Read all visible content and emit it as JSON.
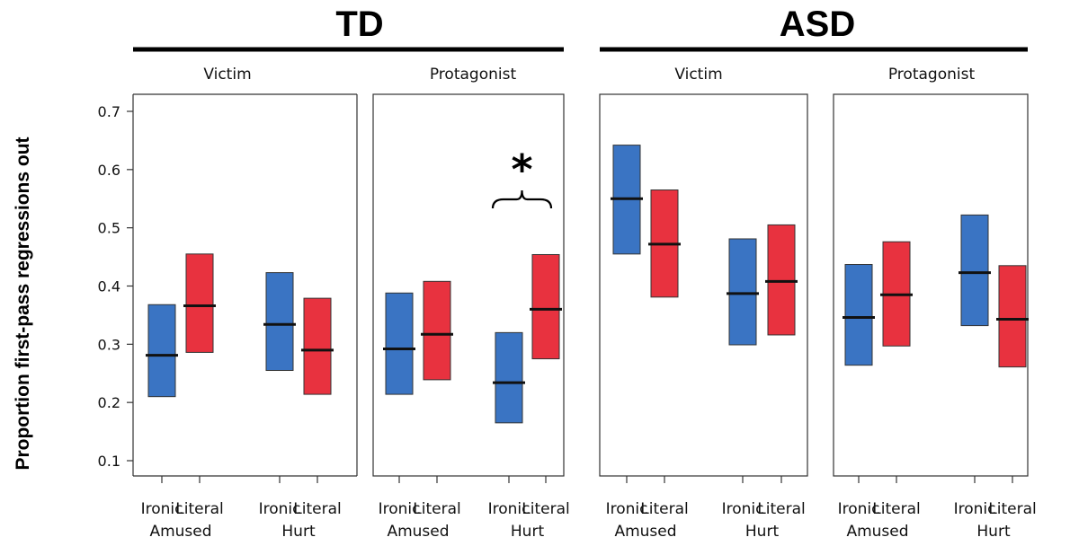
{
  "chart_data": {
    "type": "box",
    "ylabel": "Proportion first-pass regressions out",
    "y_ticks": [
      0.1,
      0.2,
      0.3,
      0.4,
      0.5,
      0.6,
      0.7
    ],
    "ylim": [
      0.07,
      0.73
    ],
    "categories": [
      "Ironic",
      "Literal"
    ],
    "conditions": [
      "Amused",
      "Hurt"
    ],
    "colors": {
      "Ironic": "#3a74c3",
      "Literal": "#e8323f"
    },
    "groups": [
      {
        "name": "TD",
        "panels": [
          {
            "name": "Victim",
            "conditions": [
              {
                "name": "Amused",
                "bars": [
                  {
                    "category": "Ironic",
                    "low": 0.21,
                    "high": 0.368,
                    "mean": 0.281
                  },
                  {
                    "category": "Literal",
                    "low": 0.286,
                    "high": 0.455,
                    "mean": 0.366
                  }
                ]
              },
              {
                "name": "Hurt",
                "bars": [
                  {
                    "category": "Ironic",
                    "low": 0.255,
                    "high": 0.423,
                    "mean": 0.334
                  },
                  {
                    "category": "Literal",
                    "low": 0.214,
                    "high": 0.379,
                    "mean": 0.29
                  }
                ]
              }
            ]
          },
          {
            "name": "Protagonist",
            "significance": {
              "condition": "Hurt",
              "marker": "*"
            },
            "conditions": [
              {
                "name": "Amused",
                "bars": [
                  {
                    "category": "Ironic",
                    "low": 0.214,
                    "high": 0.388,
                    "mean": 0.292
                  },
                  {
                    "category": "Literal",
                    "low": 0.239,
                    "high": 0.408,
                    "mean": 0.317
                  }
                ]
              },
              {
                "name": "Hurt",
                "bars": [
                  {
                    "category": "Ironic",
                    "low": 0.165,
                    "high": 0.32,
                    "mean": 0.234
                  },
                  {
                    "category": "Literal",
                    "low": 0.275,
                    "high": 0.454,
                    "mean": 0.36
                  }
                ]
              }
            ]
          }
        ]
      },
      {
        "name": "ASD",
        "panels": [
          {
            "name": "Victim",
            "conditions": [
              {
                "name": "Amused",
                "bars": [
                  {
                    "category": "Ironic",
                    "low": 0.455,
                    "high": 0.642,
                    "mean": 0.55
                  },
                  {
                    "category": "Literal",
                    "low": 0.381,
                    "high": 0.565,
                    "mean": 0.472
                  }
                ]
              },
              {
                "name": "Hurt",
                "bars": [
                  {
                    "category": "Ironic",
                    "low": 0.299,
                    "high": 0.481,
                    "mean": 0.387
                  },
                  {
                    "category": "Literal",
                    "low": 0.316,
                    "high": 0.505,
                    "mean": 0.408
                  }
                ]
              }
            ]
          },
          {
            "name": "Protagonist",
            "conditions": [
              {
                "name": "Amused",
                "bars": [
                  {
                    "category": "Ironic",
                    "low": 0.264,
                    "high": 0.437,
                    "mean": 0.346
                  },
                  {
                    "category": "Literal",
                    "low": 0.297,
                    "high": 0.476,
                    "mean": 0.385
                  }
                ]
              },
              {
                "name": "Hurt",
                "bars": [
                  {
                    "category": "Ironic",
                    "low": 0.332,
                    "high": 0.522,
                    "mean": 0.423
                  },
                  {
                    "category": "Literal",
                    "low": 0.261,
                    "high": 0.435,
                    "mean": 0.343
                  }
                ]
              }
            ]
          }
        ]
      }
    ]
  }
}
